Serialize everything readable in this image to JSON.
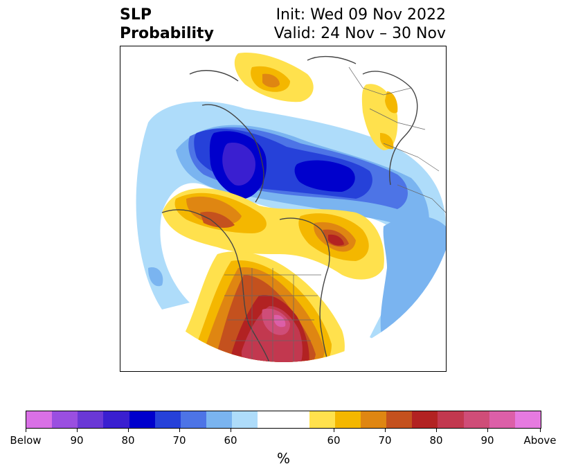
{
  "title": {
    "left_line1": "SLP",
    "left_line2": "Probability",
    "right_line1": "Init: Wed 09 Nov 2022",
    "right_line2": "Valid: 24 Nov – 30 Nov"
  },
  "colorbar": {
    "unit_label": "%",
    "tick_labels": [
      "Below",
      "90",
      "80",
      "70",
      "60",
      "60",
      "70",
      "80",
      "90",
      "Above"
    ],
    "colors": [
      "#d970e6",
      "#9a4fe0",
      "#6a38d6",
      "#3a1fd0",
      "#0000cc",
      "#2641d9",
      "#4d74e6",
      "#7ab4f0",
      "#aedcfa",
      "#ffffff",
      "#ffe14d",
      "#f4b700",
      "#df8612",
      "#c4511e",
      "#b22222",
      "#c2384f",
      "#cf4d78",
      "#dc5fa8",
      "#e67ae0"
    ]
  },
  "map": {
    "features": [
      "above-normal-pressure-central-us",
      "above-normal-pressure-alaska",
      "above-normal-pressure-hudson-bay",
      "above-normal-pressure-northern-russia",
      "above-normal-pressure-greenland-east",
      "below-normal-pressure-arctic-siberia",
      "below-normal-pressure-north-atlantic"
    ]
  }
}
